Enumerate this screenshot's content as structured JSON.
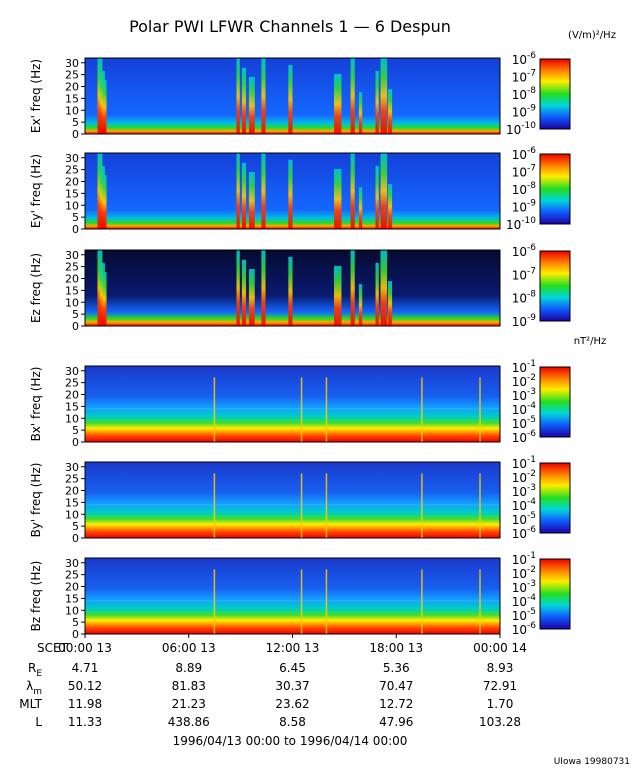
{
  "chart_data": {
    "type": "heatmap",
    "title": "Polar PWI LFWR Channels 1 — 6 Despun",
    "electric_units": "(V/m)²/Hz",
    "magnetic_units": "nT²/Hz",
    "x_ticks": [
      "00:00 13",
      "06:00 13",
      "12:00 13",
      "18:00 13",
      "00:00 14"
    ],
    "x_prefix": "SCET",
    "date_range": "1996/04/13 00:00 to 1996/04/14 00:00",
    "footer": "UIowa 19980731",
    "y_ticks": [
      0,
      5,
      10,
      15,
      20,
      25,
      30
    ],
    "ylim": [
      0,
      32
    ],
    "panels": [
      {
        "label": "Ex' freq (Hz)",
        "kind": "electric",
        "cb_labels": [
          "-6",
          "-7",
          "-8",
          "-9",
          "-10"
        ]
      },
      {
        "label": "Ey' freq (Hz)",
        "kind": "electric",
        "cb_labels": [
          "-6",
          "-7",
          "-8",
          "-9",
          "-10"
        ]
      },
      {
        "label": "Ez freq (Hz)",
        "kind": "electric",
        "cb_labels": [
          "-6",
          "-7",
          "-8",
          "-9"
        ]
      },
      {
        "label": "Bx' freq (Hz)",
        "kind": "magnetic",
        "cb_labels": [
          "-1",
          "-2",
          "-3",
          "-4",
          "-5",
          "-6"
        ]
      },
      {
        "label": "By' freq (Hz)",
        "kind": "magnetic",
        "cb_labels": [
          "-1",
          "-2",
          "-3",
          "-4",
          "-5",
          "-6"
        ]
      },
      {
        "label": "Bz freq (Hz)",
        "kind": "magnetic",
        "cb_labels": [
          "-1",
          "-2",
          "-3",
          "-4",
          "-5",
          "-6"
        ]
      }
    ],
    "ephemeris": [
      {
        "label": "R",
        "sub": "E",
        "values": [
          "4.71",
          "8.89",
          "6.45",
          "5.36",
          "8.93"
        ]
      },
      {
        "label": "λ",
        "sub": "m",
        "values": [
          "50.12",
          "81.83",
          "30.37",
          "70.47",
          "72.91"
        ]
      },
      {
        "label": "MLT",
        "sub": "",
        "values": [
          "11.98",
          "21.23",
          "23.62",
          "12.72",
          "1.70"
        ]
      },
      {
        "label": "L",
        "sub": "",
        "values": [
          "11.33",
          "438.86",
          "8.58",
          "47.96",
          "103.28"
        ]
      }
    ]
  }
}
